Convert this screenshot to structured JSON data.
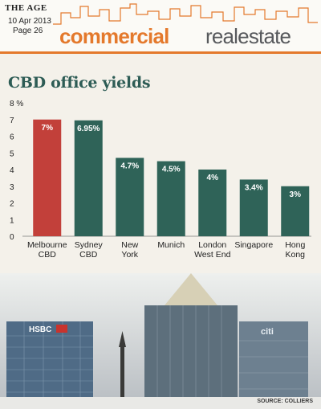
{
  "masthead": {
    "paper": "THE AGE",
    "date": "10 Apr 2013",
    "page": "Page 26",
    "section_a": "commercial",
    "section_b": "realestate"
  },
  "chart_data": {
    "type": "bar",
    "title": "CBD office yields",
    "ylabel": "%",
    "ylim": [
      0,
      8
    ],
    "yticks": [
      0,
      1,
      2,
      3,
      4,
      5,
      6,
      7,
      8
    ],
    "ytick_labels": [
      "0",
      "1",
      "2",
      "3",
      "4",
      "5",
      "6",
      "7",
      "8 %"
    ],
    "grid": false,
    "categories": [
      [
        "Melbourne",
        "CBD"
      ],
      [
        "Sydney",
        "CBD"
      ],
      [
        "New",
        "York"
      ],
      [
        "Munich"
      ],
      [
        "London",
        "West End"
      ],
      [
        "Singapore"
      ],
      [
        "Hong",
        "Kong"
      ]
    ],
    "values": [
      7,
      6.95,
      4.7,
      4.5,
      4,
      3.4,
      3
    ],
    "value_labels": [
      "7%",
      "6.95%",
      "4.7%",
      "4.5%",
      "4%",
      "3.4%",
      "3%"
    ],
    "colors": [
      "#c2403a",
      "#2f6358",
      "#2f6358",
      "#2f6358",
      "#2f6358",
      "#2f6358",
      "#2f6358"
    ]
  },
  "photo": {
    "sign_left": "HSBC",
    "sign_right": "citi"
  },
  "source": "SOURCE: COLLIERS"
}
